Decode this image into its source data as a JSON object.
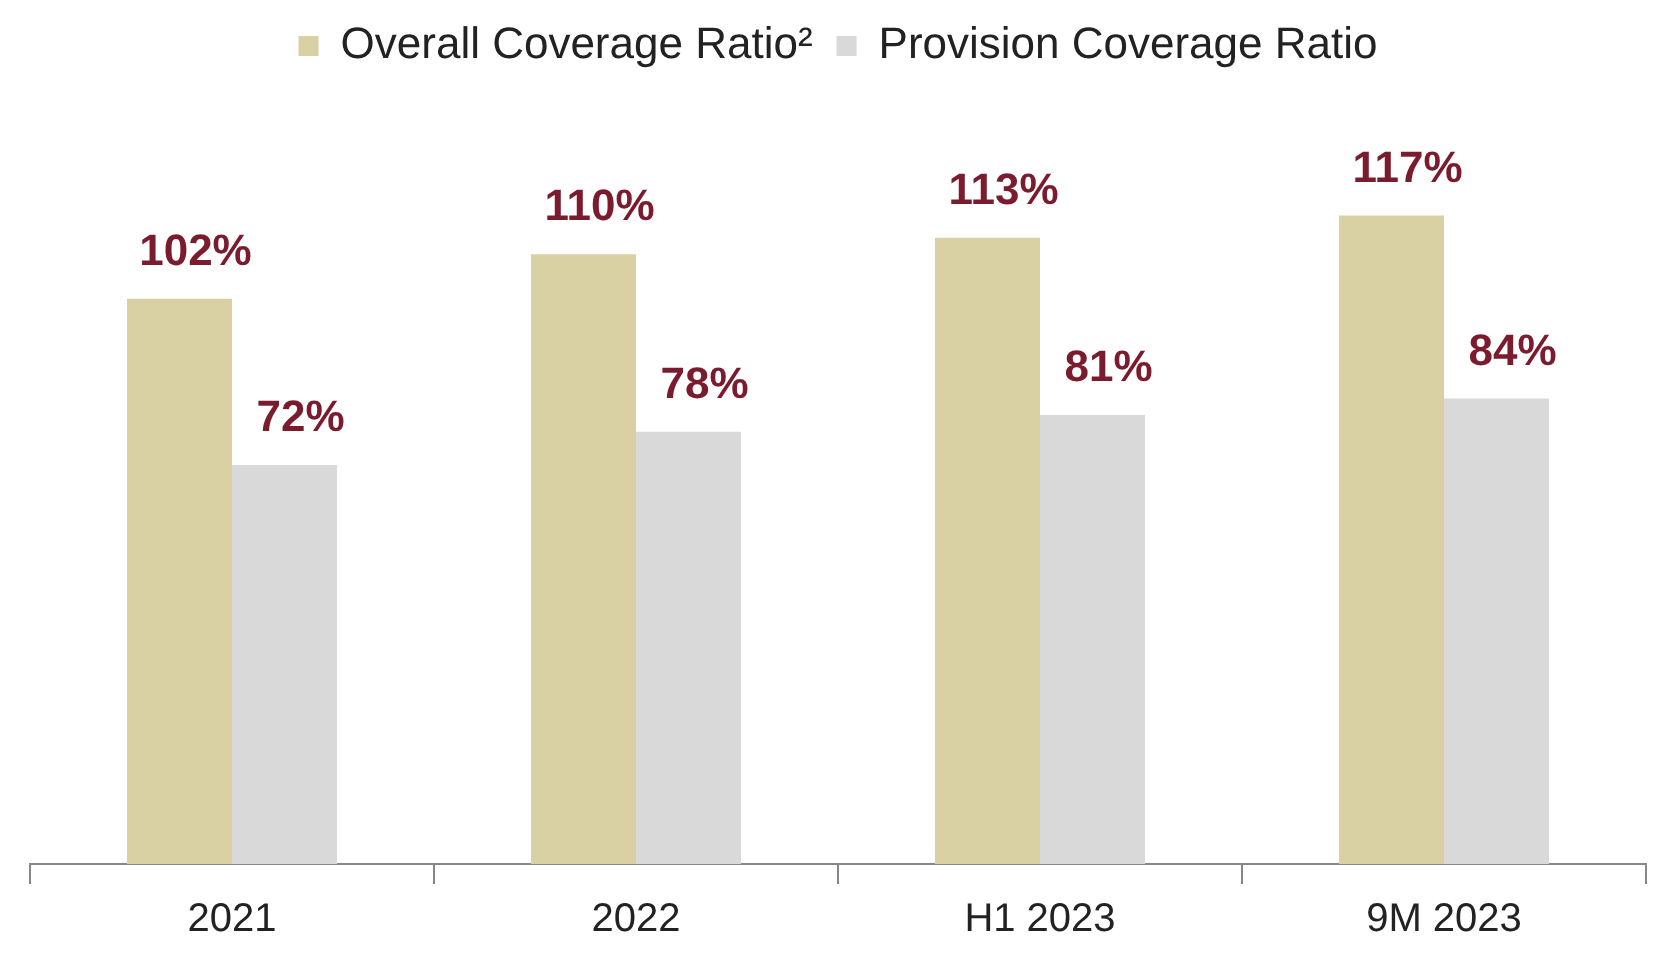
{
  "chart_data": {
    "type": "bar",
    "categories": [
      "2021",
      "2022",
      "H1 2023",
      "9M 2023"
    ],
    "series": [
      {
        "name": "Overall Coverage Ratio²",
        "color": "#d9d0a4",
        "values": [
          102,
          110,
          113,
          117
        ],
        "value_labels": [
          "102%",
          "110%",
          "113%",
          "117%"
        ]
      },
      {
        "name": "Provision Coverage Ratio",
        "color": "#d9d9d9",
        "values": [
          72,
          78,
          81,
          84
        ],
        "value_labels": [
          "72%",
          "78%",
          "81%",
          "84%"
        ]
      }
    ],
    "legend": "top",
    "grid": false,
    "tick_labels": "x"
  }
}
